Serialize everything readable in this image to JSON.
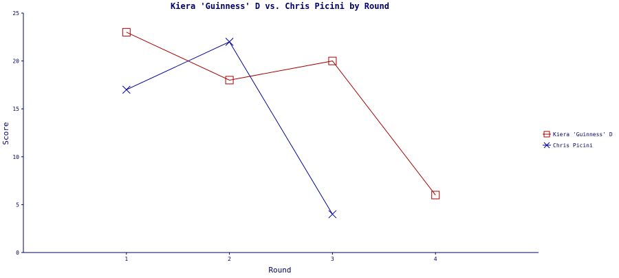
{
  "chart_data": {
    "type": "line",
    "title": "Kiera 'Guinness' D vs. Chris Picini by Round",
    "xlabel": "Round",
    "ylabel": "Score",
    "x": [
      1,
      2,
      3,
      4
    ],
    "x_tick_labels": [
      "1",
      "2",
      "3",
      "4"
    ],
    "xlim": [
      0,
      5
    ],
    "ylim": [
      0,
      25
    ],
    "y_ticks": [
      0,
      5,
      10,
      15,
      20,
      25
    ],
    "grid": false,
    "legend_position": "right",
    "series": [
      {
        "name": "Kiera 'Guinness' D",
        "marker": "square",
        "color": "#aa0000",
        "x": [
          1,
          2,
          3,
          4
        ],
        "values": [
          23,
          18,
          20,
          6
        ]
      },
      {
        "name": "Chris Picini",
        "marker": "cross",
        "color": "#000099",
        "x": [
          1,
          2,
          3
        ],
        "values": [
          17,
          22,
          4
        ]
      }
    ],
    "axis_color": "#000066"
  }
}
